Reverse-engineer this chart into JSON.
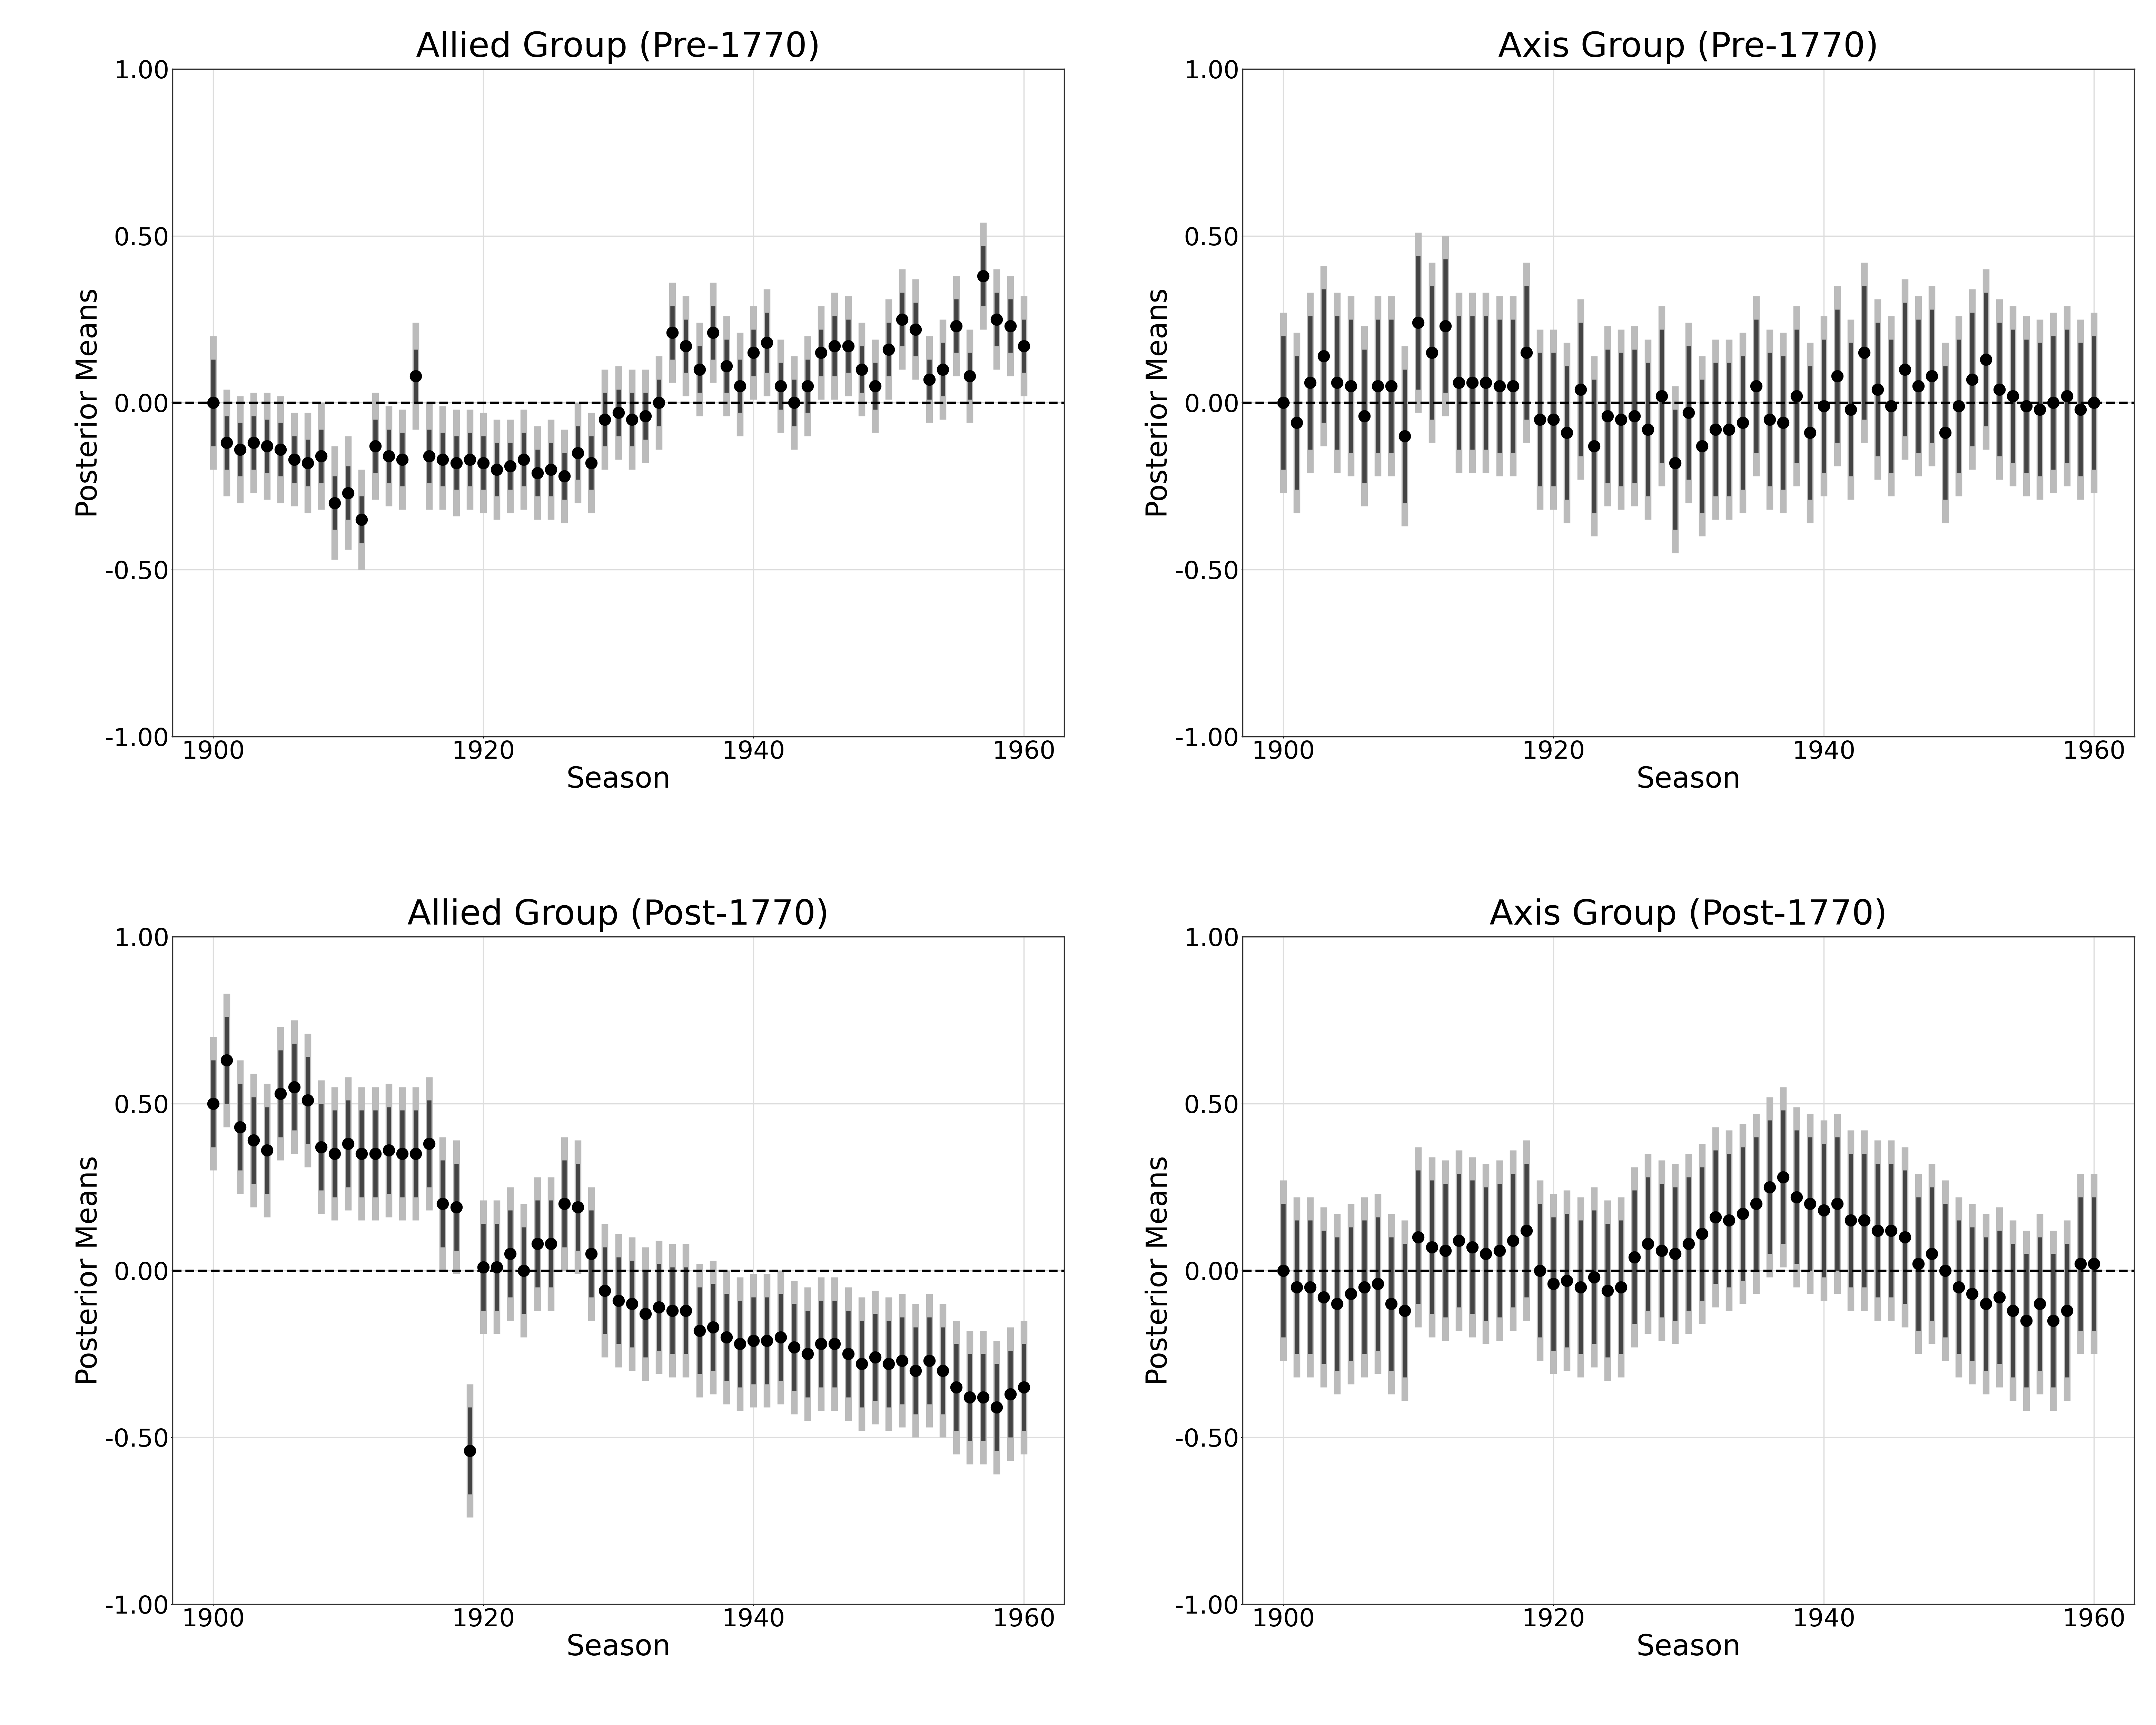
{
  "titles": [
    "Allied Group (Pre-1770)",
    "Axis Group (Pre-1770)",
    "Allied Group (Post-1770)",
    "Axis Group (Post-1770)"
  ],
  "xlabel": "Season",
  "ylabel": "Posterior Means",
  "ylim": [
    -1.0,
    1.0
  ],
  "xlim": [
    1897,
    1963
  ],
  "yticks": [
    -1.0,
    -0.5,
    0.0,
    0.5,
    1.0
  ],
  "xticks": [
    1900,
    1920,
    1940,
    1960
  ],
  "bg_color": "#ffffff",
  "panel_bg": "#ffffff",
  "grid_color": "#dddddd",
  "dashed_line_color": "black",
  "ci95_color": "#bbbbbb",
  "ci90_color": "#444444",
  "dot_color": "black",
  "dot_size": 600,
  "title_fontsize": 72,
  "label_fontsize": 60,
  "tick_fontsize": 52,
  "ci95_lw": 14,
  "ci90_lw": 9,
  "dashed_lw": 5,
  "seasons": [
    1900,
    1901,
    1902,
    1903,
    1904,
    1905,
    1906,
    1907,
    1908,
    1909,
    1910,
    1911,
    1912,
    1913,
    1914,
    1915,
    1916,
    1917,
    1918,
    1919,
    1920,
    1921,
    1922,
    1923,
    1924,
    1925,
    1926,
    1927,
    1928,
    1929,
    1930,
    1931,
    1932,
    1933,
    1934,
    1935,
    1936,
    1937,
    1938,
    1939,
    1940,
    1941,
    1942,
    1943,
    1944,
    1945,
    1946,
    1947,
    1948,
    1949,
    1950,
    1951,
    1952,
    1953,
    1954,
    1955,
    1956,
    1957,
    1958,
    1959,
    1960
  ],
  "allied_pre": {
    "mean": [
      0.0,
      -0.12,
      -0.14,
      -0.12,
      -0.13,
      -0.14,
      -0.17,
      -0.18,
      -0.16,
      -0.3,
      -0.27,
      -0.35,
      -0.13,
      -0.16,
      -0.17,
      0.08,
      -0.16,
      -0.17,
      -0.18,
      -0.17,
      -0.18,
      -0.2,
      -0.19,
      -0.17,
      -0.21,
      -0.2,
      -0.22,
      -0.15,
      -0.18,
      -0.05,
      -0.03,
      -0.05,
      -0.04,
      0.0,
      0.21,
      0.17,
      0.1,
      0.21,
      0.11,
      0.05,
      0.15,
      0.18,
      0.05,
      0.0,
      0.05,
      0.15,
      0.17,
      0.17,
      0.1,
      0.05,
      0.16,
      0.25,
      0.22,
      0.07,
      0.1,
      0.23,
      0.08,
      0.38,
      0.25,
      0.23,
      0.17
    ],
    "ci90_lo": [
      -0.13,
      -0.2,
      -0.22,
      -0.2,
      -0.21,
      -0.22,
      -0.24,
      -0.25,
      -0.24,
      -0.38,
      -0.35,
      -0.42,
      -0.21,
      -0.24,
      -0.25,
      0.0,
      -0.24,
      -0.25,
      -0.26,
      -0.25,
      -0.26,
      -0.28,
      -0.26,
      -0.25,
      -0.28,
      -0.28,
      -0.29,
      -0.23,
      -0.26,
      -0.13,
      -0.1,
      -0.13,
      -0.11,
      -0.07,
      0.13,
      0.09,
      0.03,
      0.13,
      0.03,
      -0.03,
      0.08,
      0.09,
      -0.02,
      -0.07,
      -0.03,
      0.08,
      0.08,
      0.09,
      0.03,
      -0.02,
      0.08,
      0.17,
      0.14,
      0.01,
      0.02,
      0.15,
      0.01,
      0.29,
      0.17,
      0.15,
      0.09
    ],
    "ci90_hi": [
      0.13,
      -0.04,
      -0.06,
      -0.04,
      -0.05,
      -0.06,
      -0.1,
      -0.11,
      -0.08,
      -0.22,
      -0.19,
      -0.28,
      -0.05,
      -0.08,
      -0.09,
      0.16,
      -0.08,
      -0.09,
      -0.1,
      -0.09,
      -0.1,
      -0.12,
      -0.12,
      -0.09,
      -0.14,
      -0.12,
      -0.15,
      -0.07,
      -0.1,
      0.03,
      0.04,
      0.03,
      0.03,
      0.07,
      0.29,
      0.25,
      0.17,
      0.29,
      0.19,
      0.13,
      0.22,
      0.27,
      0.12,
      0.07,
      0.13,
      0.22,
      0.26,
      0.25,
      0.17,
      0.12,
      0.24,
      0.33,
      0.3,
      0.13,
      0.18,
      0.31,
      0.15,
      0.47,
      0.33,
      0.31,
      0.25
    ],
    "ci95_lo": [
      -0.2,
      -0.28,
      -0.3,
      -0.27,
      -0.29,
      -0.3,
      -0.31,
      -0.33,
      -0.32,
      -0.47,
      -0.44,
      -0.5,
      -0.29,
      -0.31,
      -0.32,
      -0.08,
      -0.32,
      -0.32,
      -0.34,
      -0.32,
      -0.33,
      -0.35,
      -0.33,
      -0.32,
      -0.35,
      -0.35,
      -0.36,
      -0.3,
      -0.33,
      -0.2,
      -0.17,
      -0.2,
      -0.18,
      -0.14,
      0.06,
      0.02,
      -0.04,
      0.06,
      -0.04,
      -0.1,
      0.01,
      0.02,
      -0.09,
      -0.14,
      -0.1,
      0.01,
      0.01,
      0.02,
      -0.04,
      -0.09,
      0.01,
      0.1,
      0.07,
      -0.06,
      -0.05,
      0.08,
      -0.06,
      0.22,
      0.1,
      0.08,
      0.02
    ],
    "ci95_hi": [
      0.2,
      0.04,
      0.02,
      0.03,
      0.03,
      0.02,
      -0.03,
      -0.03,
      0.0,
      -0.13,
      -0.1,
      -0.2,
      0.03,
      -0.01,
      -0.02,
      0.24,
      -0.0,
      -0.01,
      -0.02,
      -0.02,
      -0.03,
      -0.05,
      -0.05,
      -0.02,
      -0.07,
      -0.05,
      -0.08,
      0.0,
      -0.03,
      0.1,
      0.11,
      0.1,
      0.1,
      0.14,
      0.36,
      0.32,
      0.24,
      0.36,
      0.26,
      0.21,
      0.29,
      0.34,
      0.19,
      0.14,
      0.2,
      0.29,
      0.33,
      0.32,
      0.24,
      0.19,
      0.31,
      0.4,
      0.37,
      0.2,
      0.25,
      0.38,
      0.22,
      0.54,
      0.4,
      0.38,
      0.32
    ]
  },
  "axis_pre": {
    "mean": [
      0.0,
      -0.06,
      0.06,
      0.14,
      0.06,
      0.05,
      -0.04,
      0.05,
      0.05,
      -0.1,
      0.24,
      0.15,
      0.23,
      0.06,
      0.06,
      0.06,
      0.05,
      0.05,
      0.15,
      -0.05,
      -0.05,
      -0.09,
      0.04,
      -0.13,
      -0.04,
      -0.05,
      -0.04,
      -0.08,
      0.02,
      -0.18,
      -0.03,
      -0.13,
      -0.08,
      -0.08,
      -0.06,
      0.05,
      -0.05,
      -0.06,
      0.02,
      -0.09,
      -0.01,
      0.08,
      -0.02,
      0.15,
      0.04,
      -0.01,
      0.1,
      0.05,
      0.08,
      -0.09,
      -0.01,
      0.07,
      0.13,
      0.04,
      0.02,
      -0.01,
      -0.02,
      0.0,
      0.02,
      -0.02,
      0.0
    ],
    "ci90_lo": [
      -0.2,
      -0.26,
      -0.14,
      -0.06,
      -0.14,
      -0.15,
      -0.24,
      -0.15,
      -0.15,
      -0.3,
      0.04,
      -0.05,
      0.03,
      -0.14,
      -0.14,
      -0.14,
      -0.15,
      -0.15,
      -0.05,
      -0.25,
      -0.25,
      -0.29,
      -0.16,
      -0.33,
      -0.24,
      -0.25,
      -0.24,
      -0.28,
      -0.18,
      -0.38,
      -0.23,
      -0.33,
      -0.28,
      -0.28,
      -0.26,
      -0.15,
      -0.25,
      -0.26,
      -0.18,
      -0.29,
      -0.21,
      -0.12,
      -0.22,
      -0.05,
      -0.16,
      -0.21,
      -0.1,
      -0.15,
      -0.12,
      -0.29,
      -0.21,
      -0.13,
      -0.07,
      -0.16,
      -0.18,
      -0.21,
      -0.22,
      -0.2,
      -0.18,
      -0.22,
      -0.2
    ],
    "ci90_hi": [
      0.2,
      0.14,
      0.26,
      0.34,
      0.26,
      0.25,
      0.16,
      0.25,
      0.25,
      0.1,
      0.44,
      0.35,
      0.43,
      0.26,
      0.26,
      0.26,
      0.25,
      0.25,
      0.35,
      0.15,
      0.15,
      0.11,
      0.24,
      0.07,
      0.16,
      0.15,
      0.16,
      0.12,
      0.22,
      -0.02,
      0.17,
      0.07,
      0.12,
      0.12,
      0.14,
      0.25,
      0.15,
      0.14,
      0.22,
      0.11,
      0.19,
      0.28,
      0.18,
      0.35,
      0.24,
      0.19,
      0.3,
      0.25,
      0.28,
      0.11,
      0.19,
      0.27,
      0.33,
      0.24,
      0.22,
      0.19,
      0.18,
      0.2,
      0.22,
      0.18,
      0.2
    ],
    "ci95_lo": [
      -0.27,
      -0.33,
      -0.21,
      -0.13,
      -0.21,
      -0.22,
      -0.31,
      -0.22,
      -0.22,
      -0.37,
      -0.03,
      -0.12,
      -0.04,
      -0.21,
      -0.21,
      -0.21,
      -0.22,
      -0.22,
      -0.12,
      -0.32,
      -0.32,
      -0.36,
      -0.23,
      -0.4,
      -0.31,
      -0.32,
      -0.31,
      -0.35,
      -0.25,
      -0.45,
      -0.3,
      -0.4,
      -0.35,
      -0.35,
      -0.33,
      -0.22,
      -0.32,
      -0.33,
      -0.25,
      -0.36,
      -0.28,
      -0.19,
      -0.29,
      -0.12,
      -0.23,
      -0.28,
      -0.17,
      -0.22,
      -0.19,
      -0.36,
      -0.28,
      -0.2,
      -0.14,
      -0.23,
      -0.25,
      -0.28,
      -0.29,
      -0.27,
      -0.25,
      -0.29,
      -0.27
    ],
    "ci95_hi": [
      0.27,
      0.21,
      0.33,
      0.41,
      0.33,
      0.32,
      0.23,
      0.32,
      0.32,
      0.17,
      0.51,
      0.42,
      0.5,
      0.33,
      0.33,
      0.33,
      0.32,
      0.32,
      0.42,
      0.22,
      0.22,
      0.18,
      0.31,
      0.14,
      0.23,
      0.22,
      0.23,
      0.19,
      0.29,
      0.05,
      0.24,
      0.14,
      0.19,
      0.19,
      0.21,
      0.32,
      0.22,
      0.21,
      0.29,
      0.18,
      0.26,
      0.35,
      0.25,
      0.42,
      0.31,
      0.26,
      0.37,
      0.32,
      0.35,
      0.18,
      0.26,
      0.34,
      0.4,
      0.31,
      0.29,
      0.26,
      0.25,
      0.27,
      0.29,
      0.25,
      0.27
    ]
  },
  "allied_post": {
    "mean": [
      0.5,
      0.63,
      0.43,
      0.39,
      0.36,
      0.53,
      0.55,
      0.51,
      0.37,
      0.35,
      0.38,
      0.35,
      0.35,
      0.36,
      0.35,
      0.35,
      0.38,
      0.2,
      0.19,
      -0.54,
      0.01,
      0.01,
      0.05,
      0.0,
      0.08,
      0.08,
      0.2,
      0.19,
      0.05,
      -0.06,
      -0.09,
      -0.1,
      -0.13,
      -0.11,
      -0.12,
      -0.12,
      -0.18,
      -0.17,
      -0.2,
      -0.22,
      -0.21,
      -0.21,
      -0.2,
      -0.23,
      -0.25,
      -0.22,
      -0.22,
      -0.25,
      -0.28,
      -0.26,
      -0.28,
      -0.27,
      -0.3,
      -0.27,
      -0.3,
      -0.35,
      -0.38,
      -0.38,
      -0.41,
      -0.37,
      -0.35
    ],
    "ci90_lo": [
      0.37,
      0.5,
      0.3,
      0.26,
      0.23,
      0.4,
      0.42,
      0.38,
      0.24,
      0.22,
      0.25,
      0.22,
      0.22,
      0.23,
      0.22,
      0.22,
      0.25,
      0.07,
      0.06,
      -0.67,
      -0.12,
      -0.12,
      -0.08,
      -0.13,
      -0.05,
      -0.05,
      0.07,
      0.06,
      -0.08,
      -0.19,
      -0.22,
      -0.23,
      -0.26,
      -0.24,
      -0.25,
      -0.25,
      -0.31,
      -0.3,
      -0.33,
      -0.35,
      -0.34,
      -0.34,
      -0.33,
      -0.36,
      -0.38,
      -0.35,
      -0.35,
      -0.38,
      -0.41,
      -0.39,
      -0.41,
      -0.4,
      -0.43,
      -0.4,
      -0.43,
      -0.48,
      -0.51,
      -0.51,
      -0.54,
      -0.5,
      -0.48
    ],
    "ci90_hi": [
      0.63,
      0.76,
      0.56,
      0.52,
      0.49,
      0.66,
      0.68,
      0.64,
      0.5,
      0.48,
      0.51,
      0.48,
      0.48,
      0.49,
      0.48,
      0.48,
      0.51,
      0.33,
      0.32,
      -0.41,
      0.14,
      0.14,
      0.18,
      0.13,
      0.21,
      0.21,
      0.33,
      0.32,
      0.18,
      0.07,
      0.04,
      0.03,
      0.0,
      0.02,
      0.01,
      0.01,
      -0.05,
      -0.04,
      -0.07,
      -0.09,
      -0.08,
      -0.08,
      -0.07,
      -0.1,
      -0.12,
      -0.09,
      -0.09,
      -0.12,
      -0.15,
      -0.13,
      -0.15,
      -0.14,
      -0.17,
      -0.14,
      -0.17,
      -0.22,
      -0.25,
      -0.25,
      -0.28,
      -0.24,
      -0.22
    ],
    "ci95_lo": [
      0.3,
      0.43,
      0.23,
      0.19,
      0.16,
      0.33,
      0.35,
      0.31,
      0.17,
      0.15,
      0.18,
      0.15,
      0.15,
      0.16,
      0.15,
      0.15,
      0.18,
      0.0,
      -0.01,
      -0.74,
      -0.19,
      -0.19,
      -0.15,
      -0.2,
      -0.12,
      -0.12,
      0.0,
      -0.01,
      -0.15,
      -0.26,
      -0.29,
      -0.3,
      -0.33,
      -0.31,
      -0.32,
      -0.32,
      -0.38,
      -0.37,
      -0.4,
      -0.42,
      -0.41,
      -0.41,
      -0.4,
      -0.43,
      -0.45,
      -0.42,
      -0.42,
      -0.45,
      -0.48,
      -0.46,
      -0.48,
      -0.47,
      -0.5,
      -0.47,
      -0.5,
      -0.55,
      -0.58,
      -0.58,
      -0.61,
      -0.57,
      -0.55
    ],
    "ci95_hi": [
      0.7,
      0.83,
      0.63,
      0.59,
      0.56,
      0.73,
      0.75,
      0.71,
      0.57,
      0.55,
      0.58,
      0.55,
      0.55,
      0.56,
      0.55,
      0.55,
      0.58,
      0.4,
      0.39,
      -0.34,
      0.21,
      0.21,
      0.25,
      0.2,
      0.28,
      0.28,
      0.4,
      0.39,
      0.25,
      0.14,
      0.11,
      0.1,
      0.07,
      0.09,
      0.08,
      0.08,
      0.02,
      0.03,
      0.0,
      -0.02,
      -0.01,
      -0.01,
      0.0,
      -0.03,
      -0.05,
      -0.02,
      -0.02,
      -0.05,
      -0.08,
      -0.06,
      -0.08,
      -0.07,
      -0.1,
      -0.07,
      -0.1,
      -0.15,
      -0.18,
      -0.18,
      -0.21,
      -0.17,
      -0.15
    ]
  },
  "axis_post": {
    "mean": [
      0.0,
      -0.05,
      -0.05,
      -0.08,
      -0.1,
      -0.07,
      -0.05,
      -0.04,
      -0.1,
      -0.12,
      0.1,
      0.07,
      0.06,
      0.09,
      0.07,
      0.05,
      0.06,
      0.09,
      0.12,
      0.0,
      -0.04,
      -0.03,
      -0.05,
      -0.02,
      -0.06,
      -0.05,
      0.04,
      0.08,
      0.06,
      0.05,
      0.08,
      0.11,
      0.16,
      0.15,
      0.17,
      0.2,
      0.25,
      0.28,
      0.22,
      0.2,
      0.18,
      0.2,
      0.15,
      0.15,
      0.12,
      0.12,
      0.1,
      0.02,
      0.05,
      0.0,
      -0.05,
      -0.07,
      -0.1,
      -0.08,
      -0.12,
      -0.15,
      -0.1,
      -0.15,
      -0.12,
      0.02,
      0.02
    ],
    "ci90_lo": [
      -0.2,
      -0.25,
      -0.25,
      -0.28,
      -0.3,
      -0.27,
      -0.25,
      -0.24,
      -0.3,
      -0.32,
      -0.1,
      -0.13,
      -0.14,
      -0.11,
      -0.13,
      -0.15,
      -0.14,
      -0.11,
      -0.08,
      -0.2,
      -0.24,
      -0.23,
      -0.25,
      -0.22,
      -0.26,
      -0.25,
      -0.16,
      -0.12,
      -0.14,
      -0.15,
      -0.12,
      -0.09,
      -0.04,
      -0.05,
      -0.03,
      0.0,
      0.05,
      0.08,
      0.02,
      0.0,
      -0.02,
      0.0,
      -0.05,
      -0.05,
      -0.08,
      -0.08,
      -0.1,
      -0.18,
      -0.15,
      -0.2,
      -0.25,
      -0.27,
      -0.3,
      -0.28,
      -0.32,
      -0.35,
      -0.3,
      -0.35,
      -0.32,
      -0.18,
      -0.18
    ],
    "ci90_hi": [
      0.2,
      0.15,
      0.15,
      0.12,
      0.1,
      0.13,
      0.15,
      0.16,
      0.1,
      0.08,
      0.3,
      0.27,
      0.26,
      0.29,
      0.27,
      0.25,
      0.26,
      0.29,
      0.32,
      0.2,
      0.16,
      0.17,
      0.15,
      0.18,
      0.14,
      0.15,
      0.24,
      0.28,
      0.26,
      0.25,
      0.28,
      0.31,
      0.36,
      0.35,
      0.37,
      0.4,
      0.45,
      0.48,
      0.42,
      0.4,
      0.38,
      0.4,
      0.35,
      0.35,
      0.32,
      0.32,
      0.3,
      0.22,
      0.25,
      0.2,
      0.15,
      0.13,
      0.1,
      0.12,
      0.08,
      0.05,
      0.1,
      0.05,
      0.08,
      0.22,
      0.22
    ],
    "ci95_lo": [
      -0.27,
      -0.32,
      -0.32,
      -0.35,
      -0.37,
      -0.34,
      -0.32,
      -0.31,
      -0.37,
      -0.39,
      -0.17,
      -0.2,
      -0.21,
      -0.18,
      -0.2,
      -0.22,
      -0.21,
      -0.18,
      -0.15,
      -0.27,
      -0.31,
      -0.3,
      -0.32,
      -0.29,
      -0.33,
      -0.32,
      -0.23,
      -0.19,
      -0.21,
      -0.22,
      -0.19,
      -0.16,
      -0.11,
      -0.12,
      -0.1,
      -0.07,
      -0.02,
      0.01,
      -0.05,
      -0.07,
      -0.09,
      -0.07,
      -0.12,
      -0.12,
      -0.15,
      -0.15,
      -0.17,
      -0.25,
      -0.22,
      -0.27,
      -0.32,
      -0.34,
      -0.37,
      -0.35,
      -0.39,
      -0.42,
      -0.37,
      -0.42,
      -0.39,
      -0.25,
      -0.25
    ],
    "ci95_hi": [
      0.27,
      0.22,
      0.22,
      0.19,
      0.17,
      0.2,
      0.22,
      0.23,
      0.17,
      0.15,
      0.37,
      0.34,
      0.33,
      0.36,
      0.34,
      0.32,
      0.33,
      0.36,
      0.39,
      0.27,
      0.23,
      0.24,
      0.22,
      0.25,
      0.21,
      0.22,
      0.31,
      0.35,
      0.33,
      0.32,
      0.35,
      0.38,
      0.43,
      0.42,
      0.44,
      0.47,
      0.52,
      0.55,
      0.49,
      0.47,
      0.45,
      0.47,
      0.42,
      0.42,
      0.39,
      0.39,
      0.37,
      0.29,
      0.32,
      0.27,
      0.22,
      0.2,
      0.17,
      0.19,
      0.15,
      0.12,
      0.17,
      0.12,
      0.15,
      0.29,
      0.29
    ]
  }
}
